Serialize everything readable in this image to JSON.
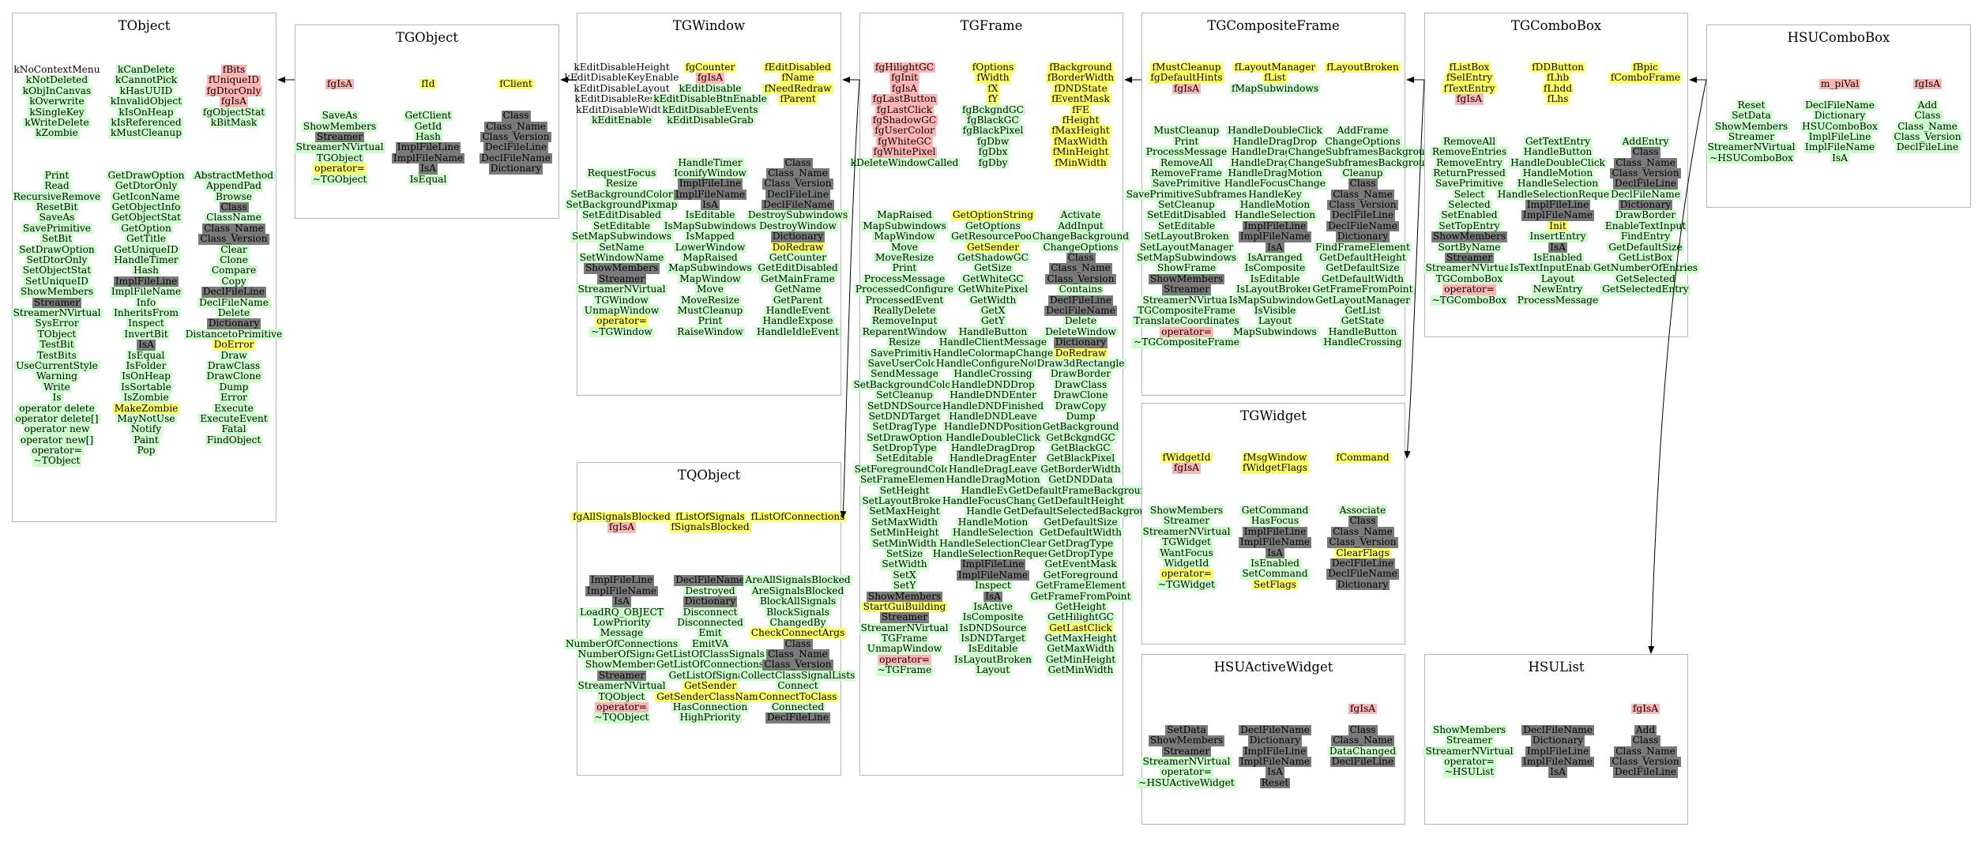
{
  "colors": {
    "method": "#ccffcc",
    "private": "#ffb4b4",
    "highlight": "#ffff66",
    "inherited": "#7a7a7a",
    "border": "#b4b4b4"
  },
  "classes": {
    "TObject": {
      "title": "TObject",
      "cols": [
        [
          "n:kNoContextMenu",
          "g:kNotDeleted",
          "g:kObjInCanvas",
          "g:kOverwrite",
          "g:kSingleKey",
          "g:kWriteDelete",
          "g:kZombie",
          "-",
          "-",
          "-",
          "g:Print",
          "g:Read",
          "g:RecursiveRemove",
          "g:ResetBit",
          "g:SaveAs",
          "g:SavePrimitive",
          "g:SetBit",
          "g:SetDrawOption",
          "g:SetDtorOnly",
          "g:SetObjectStat",
          "g:SetUniqueID",
          "g:ShowMembers",
          "d:Streamer",
          "g:StreamerNVirtual",
          "g:SysError",
          "g:TObject",
          "g:TestBit",
          "g:TestBits",
          "g:UseCurrentStyle",
          "g:Warning",
          "g:Write",
          "g:Is",
          "g:operator delete",
          "g:operator delete[]",
          "g:operator new",
          "g:operator new[]",
          "g:operator=",
          "g:~TObject"
        ],
        [
          "g:kCanDelete",
          "g:kCannotPick",
          "g:kHasUUID",
          "g:kInvalidObject",
          "g:kIsOnHeap",
          "g:kIsReferenced",
          "g:kMustCleanup",
          "-",
          "-",
          "-",
          "g:GetDrawOption",
          "g:GetDtorOnly",
          "g:GetIconName",
          "g:GetObjectInfo",
          "g:GetObjectStat",
          "g:GetOption",
          "g:GetTitle",
          "g:GetUniqueID",
          "g:HandleTimer",
          "g:Hash",
          "d:ImplFileLine",
          "g:ImplFileName",
          "g:Info",
          "g:InheritsFrom",
          "g:Inspect",
          "g:InvertBit",
          "d:IsA",
          "g:IsEqual",
          "g:IsFolder",
          "g:IsOnHeap",
          "g:IsSortable",
          "g:IsZombie",
          "y:MakeZombie",
          "g:MayNotUse",
          "g:Notify",
          "g:Paint",
          "g:Pop"
        ],
        [
          "r:fBits",
          "r:fUniqueID",
          "r:fgDtorOnly",
          "r:fgIsA",
          "g:fgObjectStat",
          "g:kBitMask",
          "-",
          "-",
          "-",
          "-",
          "g:AbstractMethod",
          "g:AppendPad",
          "g:Browse",
          "d:Class",
          "g:ClassName",
          "d:Class_Name",
          "d:Class_Version",
          "g:Clear",
          "g:Clone",
          "g:Compare",
          "g:Copy",
          "d:DeclFileLine",
          "g:DeclFileName",
          "g:Delete",
          "d:Dictionary",
          "g:DistancetoPrimitive",
          "y:DoError",
          "g:Draw",
          "g:DrawClass",
          "g:DrawClone",
          "g:Dump",
          "g:Error",
          "g:Execute",
          "g:ExecuteEvent",
          "g:Fatal",
          "g:FindObject"
        ]
      ]
    },
    "TGObject": {
      "title": "TGObject",
      "cols": [
        [
          "r:fgIsA",
          "-",
          "-",
          "g:SaveAs",
          "g:ShowMembers",
          "d:Streamer",
          "g:StreamerNVirtual",
          "g:TGObject",
          "y:operator=",
          "g:~TGObject"
        ],
        [
          "y:fId",
          "-",
          "-",
          "g:GetClient",
          "g:GetId",
          "g:Hash",
          "d:ImplFileLine",
          "d:ImplFileName",
          "d:IsA",
          "g:IsEqual"
        ],
        [
          "y:fClient",
          "-",
          "-",
          "d:Class",
          "d:Class_Name",
          "d:Class_Version",
          "d:DeclFileLine",
          "d:DeclFileName",
          "d:Dictionary"
        ]
      ]
    },
    "TGWindow": {
      "title": "TGWindow",
      "cols": [
        [
          "n:kEditDisableHeight",
          "n:kEditDisableKeyEnable",
          "n:kEditDisableLayout",
          "n:kEditDisableResize",
          "n:kEditDisableWidth",
          "g:kEditEnable",
          "-",
          "-",
          "-",
          "-",
          "g:RequestFocus",
          "g:Resize",
          "g:SetBackgroundColor",
          "g:SetBackgroundPixmap",
          "g:SetEditDisabled",
          "g:SetEditable",
          "g:SetMapSubwindows",
          "g:SetName",
          "g:SetWindowName",
          "d:ShowMembers",
          "d:Streamer",
          "g:StreamerNVirtual",
          "g:TGWindow",
          "g:UnmapWindow",
          "y:operator=",
          "g:~TGWindow"
        ],
        [
          "y:fgCounter",
          "r:fgIsA",
          "g:kEditDisable",
          "g:kEditDisableBtnEnable",
          "g:kEditDisableEvents",
          "g:kEditDisableGrab",
          "-",
          "-",
          "-",
          "g:HandleTimer",
          "g:IconifyWindow",
          "d:ImplFileLine",
          "d:ImplFileName",
          "d:IsA",
          "g:IsEditable",
          "g:IsMapSubwindows",
          "g:IsMapped",
          "g:LowerWindow",
          "g:MapRaised",
          "g:MapSubwindows",
          "g:MapWindow",
          "g:Move",
          "g:MoveResize",
          "g:MustCleanup",
          "g:Print",
          "g:RaiseWindow"
        ],
        [
          "y:fEditDisabled",
          "y:fName",
          "y:fNeedRedraw",
          "y:fParent",
          "-",
          "-",
          "-",
          "-",
          "-",
          "d:Class",
          "d:Class_Name",
          "d:Class_Version",
          "d:DeclFileLine",
          "d:DeclFileName",
          "g:DestroySubwindows",
          "g:DestroyWindow",
          "d:Dictionary",
          "y:DoRedraw",
          "g:GetCounter",
          "g:GetEditDisabled",
          "g:GetMainFrame",
          "g:GetName",
          "g:GetParent",
          "g:HandleEvent",
          "g:HandleExpose",
          "g:HandleIdleEvent"
        ]
      ]
    },
    "TGFrame": {
      "title": "TGFrame",
      "cols": [
        [
          "r:fgHilightGC",
          "r:fgInit",
          "r:fgIsA",
          "r:fgLastButton",
          "r:fgLastClick",
          "r:fgShadowGC",
          "r:fgUserColor",
          "r:fgWhiteGC",
          "r:fgWhitePixel",
          "g:kDeleteWindowCalled",
          "-",
          "-",
          "-",
          "-",
          "g:MapRaised",
          "g:MapSubwindows",
          "g:MapWindow",
          "g:Move",
          "g:MoveResize",
          "g:Print",
          "g:ProcessMessage",
          "g:ProcessedConfigure",
          "g:ProcessedEvent",
          "g:ReallyDelete",
          "g:RemoveInput",
          "g:ReparentWindow",
          "g:Resize",
          "g:SavePrimitive",
          "g:SaveUserColor",
          "g:SendMessage",
          "g:SetBackgroundColor",
          "g:SetCleanup",
          "g:SetDNDSource",
          "g:SetDNDTarget",
          "g:SetDragType",
          "g:SetDrawOption",
          "g:SetDropType",
          "g:SetEditable",
          "g:SetForegroundColor",
          "g:SetFrameElement",
          "g:SetHeight",
          "g:SetLayoutBroken",
          "g:SetMaxHeight",
          "g:SetMaxWidth",
          "g:SetMinHeight",
          "g:SetMinWidth",
          "g:SetSize",
          "g:SetWidth",
          "g:SetX",
          "g:SetY",
          "d:ShowMembers",
          "y:StartGuiBuilding",
          "d:Streamer",
          "g:StreamerNVirtual",
          "g:TGFrame",
          "g:UnmapWindow",
          "r:operator=",
          "g:~TGFrame"
        ],
        [
          "y:fOptions",
          "y:fWidth",
          "y:fX",
          "y:fY",
          "g:fgBckgndGC",
          "g:fgBlackGC",
          "g:fgBlackPixel",
          "g:fgDbw",
          "g:fgDbx",
          "g:fgDby",
          "-",
          "-",
          "-",
          "-",
          "y:GetOptionString",
          "g:GetOptions",
          "g:GetResourcePool",
          "y:GetSender",
          "g:GetShadowGC",
          "g:GetSize",
          "g:GetWhiteGC",
          "g:GetWhitePixel",
          "g:GetWidth",
          "g:GetX",
          "g:GetY",
          "g:HandleButton",
          "g:HandleClientMessage",
          "g:HandleColormapChange",
          "g:HandleConfigureNotify",
          "g:HandleCrossing",
          "g:HandleDNDDrop",
          "g:HandleDNDEnter",
          "g:HandleDNDFinished",
          "g:HandleDNDLeave",
          "g:HandleDNDPosition",
          "g:HandleDoubleClick",
          "g:HandleDragDrop",
          "g:HandleDragEnter",
          "g:HandleDragLeave",
          "g:HandleDragMotion",
          "g:HandleEvent",
          "g:HandleFocusChange",
          "g:HandleKey",
          "g:HandleMotion",
          "g:HandleSelection",
          "g:HandleSelectionClear",
          "g:HandleSelectionRequest",
          "d:ImplFileLine",
          "d:ImplFileName",
          "g:Inspect",
          "d:IsA",
          "g:IsActive",
          "g:IsComposite",
          "g:IsDNDSource",
          "g:IsDNDTarget",
          "g:IsEditable",
          "g:IsLayoutBroken",
          "g:Layout"
        ],
        [
          "y:fBackground",
          "y:fBorderWidth",
          "y:fDNDState",
          "y:fEventMask",
          "y:fFE",
          "y:fHeight",
          "y:fMaxHeight",
          "y:fMaxWidth",
          "y:fMinHeight",
          "y:fMinWidth",
          "-",
          "-",
          "-",
          "-",
          "g:Activate",
          "g:AddInput",
          "g:ChangeBackground",
          "g:ChangeOptions",
          "d:Class",
          "d:Class_Name",
          "d:Class_Version",
          "g:Contains",
          "d:DeclFileLine",
          "d:DeclFileName",
          "g:Delete",
          "g:DeleteWindow",
          "d:Dictionary",
          "y:DoRedraw",
          "g:Draw3dRectangle",
          "g:DrawBorder",
          "g:DrawClass",
          "g:DrawClone",
          "g:DrawCopy",
          "g:Dump",
          "g:GetBackground",
          "g:GetBckgndGC",
          "g:GetBlackGC",
          "g:GetBlackPixel",
          "g:GetBorderWidth",
          "g:GetDNDData",
          "g:GetDefaultFrameBackground",
          "g:GetDefaultHeight",
          "g:GetDefaultSelectedBackground",
          "g:GetDefaultSize",
          "g:GetDefaultWidth",
          "g:GetDragType",
          "g:GetDropType",
          "g:GetEventMask",
          "g:GetForeground",
          "g:GetFrameElement",
          "g:GetFrameFromPoint",
          "g:GetHeight",
          "g:GetHilightGC",
          "y:GetLastClick",
          "g:GetMaxHeight",
          "g:GetMaxWidth",
          "g:GetMinHeight",
          "g:GetMinWidth"
        ]
      ]
    },
    "TQObject": {
      "title": "TQObject",
      "cols": [
        [
          "y:fgAllSignalsBlocked",
          "r:fgIsA",
          "-",
          "-",
          "-",
          "-",
          "d:ImplFileLine",
          "d:ImplFileName",
          "d:IsA",
          "g:LoadRQ_OBJECT",
          "g:LowPriority",
          "g:Message",
          "g:NumberOfConnections",
          "g:NumberOfSignals",
          "g:ShowMembers",
          "d:Streamer",
          "g:StreamerNVirtual",
          "g:TQObject",
          "r:operator=",
          "g:~TQObject"
        ],
        [
          "y:fListOfSignals",
          "y:fSignalsBlocked",
          "-",
          "-",
          "-",
          "-",
          "d:DeclFileName",
          "g:Destroyed",
          "d:Dictionary",
          "g:Disconnect",
          "g:Disconnected",
          "g:Emit",
          "g:EmitVA",
          "g:GetListOfClassSignals",
          "g:GetListOfConnections",
          "g:GetListOfSignals",
          "y:GetSender",
          "y:GetSenderClassName",
          "g:HasConnection",
          "g:HighPriority"
        ],
        [
          "y:fListOfConnections",
          "-",
          "-",
          "-",
          "-",
          "-",
          "g:AreAllSignalsBlocked",
          "g:AreSignalsBlocked",
          "g:BlockAllSignals",
          "g:BlockSignals",
          "g:ChangedBy",
          "y:CheckConnectArgs",
          "d:Class",
          "d:Class_Name",
          "d:Class_Version",
          "g:CollectClassSignalLists",
          "g:Connect",
          "y:ConnectToClass",
          "g:Connected",
          "d:DeclFileLine"
        ]
      ]
    },
    "TGCompositeFrame": {
      "title": "TGCompositeFrame",
      "cols": [
        [
          "y:fMustCleanup",
          "y:fgDefaultHints",
          "r:fgIsA",
          "-",
          "-",
          "-",
          "g:MustCleanup",
          "g:Print",
          "g:ProcessMessage",
          "g:RemoveAll",
          "g:RemoveFrame",
          "g:SavePrimitive",
          "g:SavePrimitiveSubframes",
          "g:SetCleanup",
          "g:SetEditDisabled",
          "g:SetEditable",
          "g:SetLayoutBroken",
          "g:SetLayoutManager",
          "g:SetMapSubwindows",
          "g:ShowFrame",
          "d:ShowMembers",
          "d:Streamer",
          "g:StreamerNVirtual",
          "g:TGCompositeFrame",
          "g:TranslateCoordinates",
          "r:operator=",
          "g:~TGCompositeFrame"
        ],
        [
          "y:fLayoutManager",
          "y:fList",
          "g:fMapSubwindows",
          "-",
          "-",
          "-",
          "g:HandleDoubleClick",
          "g:HandleDragDrop",
          "g:HandleDragEnter",
          "g:HandleDragLeave",
          "g:HandleDragMotion",
          "g:HandleFocusChange",
          "g:HandleKey",
          "g:HandleMotion",
          "g:HandleSelection",
          "d:ImplFileLine",
          "d:ImplFileName",
          "d:IsA",
          "g:IsArranged",
          "g:IsComposite",
          "g:IsEditable",
          "g:IsLayoutBroken",
          "g:IsMapSubwindows",
          "g:IsVisible",
          "g:Layout",
          "g:MapSubwindows"
        ],
        [
          "y:fLayoutBroken",
          "-",
          "-",
          "-",
          "-",
          "-",
          "g:AddFrame",
          "g:ChangeOptions",
          "g:ChangeSubframesBackground",
          "g:ChangeSubframesBackground",
          "g:Cleanup",
          "d:Class",
          "d:Class_Name",
          "d:Class_Version",
          "d:DeclFileLine",
          "d:DeclFileName",
          "d:Dictionary",
          "g:FindFrameElement",
          "g:GetDefaultHeight",
          "g:GetDefaultSize",
          "g:GetDefaultWidth",
          "g:GetFrameFromPoint",
          "g:GetLayoutManager",
          "g:GetList",
          "g:GetState",
          "g:HandleButton",
          "g:HandleCrossing"
        ]
      ]
    },
    "TGComboBox": {
      "title": "TGComboBox",
      "cols": [
        [
          "y:fListBox",
          "y:fSelEntry",
          "y:fTextEntry",
          "r:fgIsA",
          "-",
          "-",
          "-",
          "g:RemoveAll",
          "g:RemoveEntries",
          "g:RemoveEntry",
          "g:ReturnPressed",
          "g:SavePrimitive",
          "g:Select",
          "g:Selected",
          "g:SetEnabled",
          "g:SetTopEntry",
          "d:ShowMembers",
          "g:SortByName",
          "d:Streamer",
          "g:StreamerNVirtual",
          "g:TGComboBox",
          "r:operator=",
          "g:~TGComboBox"
        ],
        [
          "y:fDDButton",
          "y:fLhb",
          "y:fLhdd",
          "y:fLhs",
          "-",
          "-",
          "-",
          "g:GetTextEntry",
          "g:HandleButton",
          "g:HandleDoubleClick",
          "g:HandleMotion",
          "g:HandleSelection",
          "g:HandleSelectionRequest",
          "d:ImplFileLine",
          "d:ImplFileName",
          "y:Init",
          "g:InsertEntry",
          "d:IsA",
          "g:IsEnabled",
          "g:IsTextInputEnabled",
          "g:Layout",
          "g:NewEntry",
          "g:ProcessMessage"
        ],
        [
          "y:fBpic",
          "y:fComboFrame",
          "-",
          "-",
          "-",
          "-",
          "-",
          "g:AddEntry",
          "d:Class",
          "d:Class_Name",
          "d:Class_Version",
          "d:DeclFileLine",
          "g:DeclFileName",
          "d:Dictionary",
          "g:DrawBorder",
          "g:EnableTextInput",
          "g:FindEntry",
          "g:GetDefaultSize",
          "g:GetListBox",
          "g:GetNumberOfEntries",
          "g:GetSelected",
          "g:GetSelectedEntry"
        ]
      ]
    },
    "HSUComboBox": {
      "title": "HSUComboBox",
      "cols": [
        [
          "-",
          "-",
          "g:Reset",
          "g:SetData",
          "g:ShowMembers",
          "g:Streamer",
          "g:StreamerNVirtual",
          "g:~HSUComboBox"
        ],
        [
          "r:m_piVal",
          "-",
          "g:DeclFileName",
          "g:Dictionary",
          "g:HSUComboBox",
          "g:ImplFileLine",
          "g:ImplFileName",
          "g:IsA"
        ],
        [
          "r:fgIsA",
          "-",
          "g:Add",
          "g:Class",
          "g:Class_Name",
          "g:Class_Version",
          "g:DeclFileLine"
        ]
      ]
    },
    "TGWidget": {
      "title": "TGWidget",
      "cols": [
        [
          "y:fWidgetId",
          "r:fgIsA",
          "-",
          "-",
          "-",
          "g:ShowMembers",
          "g:Streamer",
          "g:StreamerNVirtual",
          "g:TGWidget",
          "g:WantFocus",
          "g:WidgetId",
          "y:operator=",
          "g:~TGWidget"
        ],
        [
          "y:fMsgWindow",
          "y:fWidgetFlags",
          "-",
          "-",
          "-",
          "g:GetCommand",
          "g:HasFocus",
          "d:ImplFileLine",
          "d:ImplFileName",
          "d:IsA",
          "g:IsEnabled",
          "g:SetCommand",
          "y:SetFlags"
        ],
        [
          "y:fCommand",
          "-",
          "-",
          "-",
          "-",
          "g:Associate",
          "d:Class",
          "d:Class_Name",
          "d:Class_Version",
          "y:ClearFlags",
          "d:DeclFileLine",
          "d:DeclFileName",
          "d:Dictionary"
        ]
      ]
    },
    "HSUActiveWidget": {
      "title": "HSUActiveWidget",
      "cols": [
        [
          "-",
          "-",
          "d:SetData",
          "d:ShowMembers",
          "d:Streamer",
          "g:StreamerNVirtual",
          "g:operator=",
          "g:~HSUActiveWidget"
        ],
        [
          "-",
          "-",
          "d:DeclFileName",
          "d:Dictionary",
          "d:ImplFileLine",
          "d:ImplFileName",
          "d:IsA",
          "d:Reset"
        ],
        [
          "r:fgIsA",
          "-",
          "d:Class",
          "d:Class_Name",
          "g:DataChanged",
          "d:DeclFileLine"
        ]
      ]
    },
    "HSUList": {
      "title": "HSUList",
      "cols": [
        [
          "-",
          "-",
          "g:ShowMembers",
          "g:Streamer",
          "g:StreamerNVirtual",
          "g:operator=",
          "g:~HSUList"
        ],
        [
          "-",
          "-",
          "d:DeclFileName",
          "d:Dictionary",
          "d:ImplFileLine",
          "d:ImplFileName",
          "d:IsA"
        ],
        [
          "r:fgIsA",
          "-",
          "d:Add",
          "d:Class",
          "d:Class_Name",
          "d:Class_Version",
          "d:DeclFileLine"
        ]
      ]
    }
  }
}
